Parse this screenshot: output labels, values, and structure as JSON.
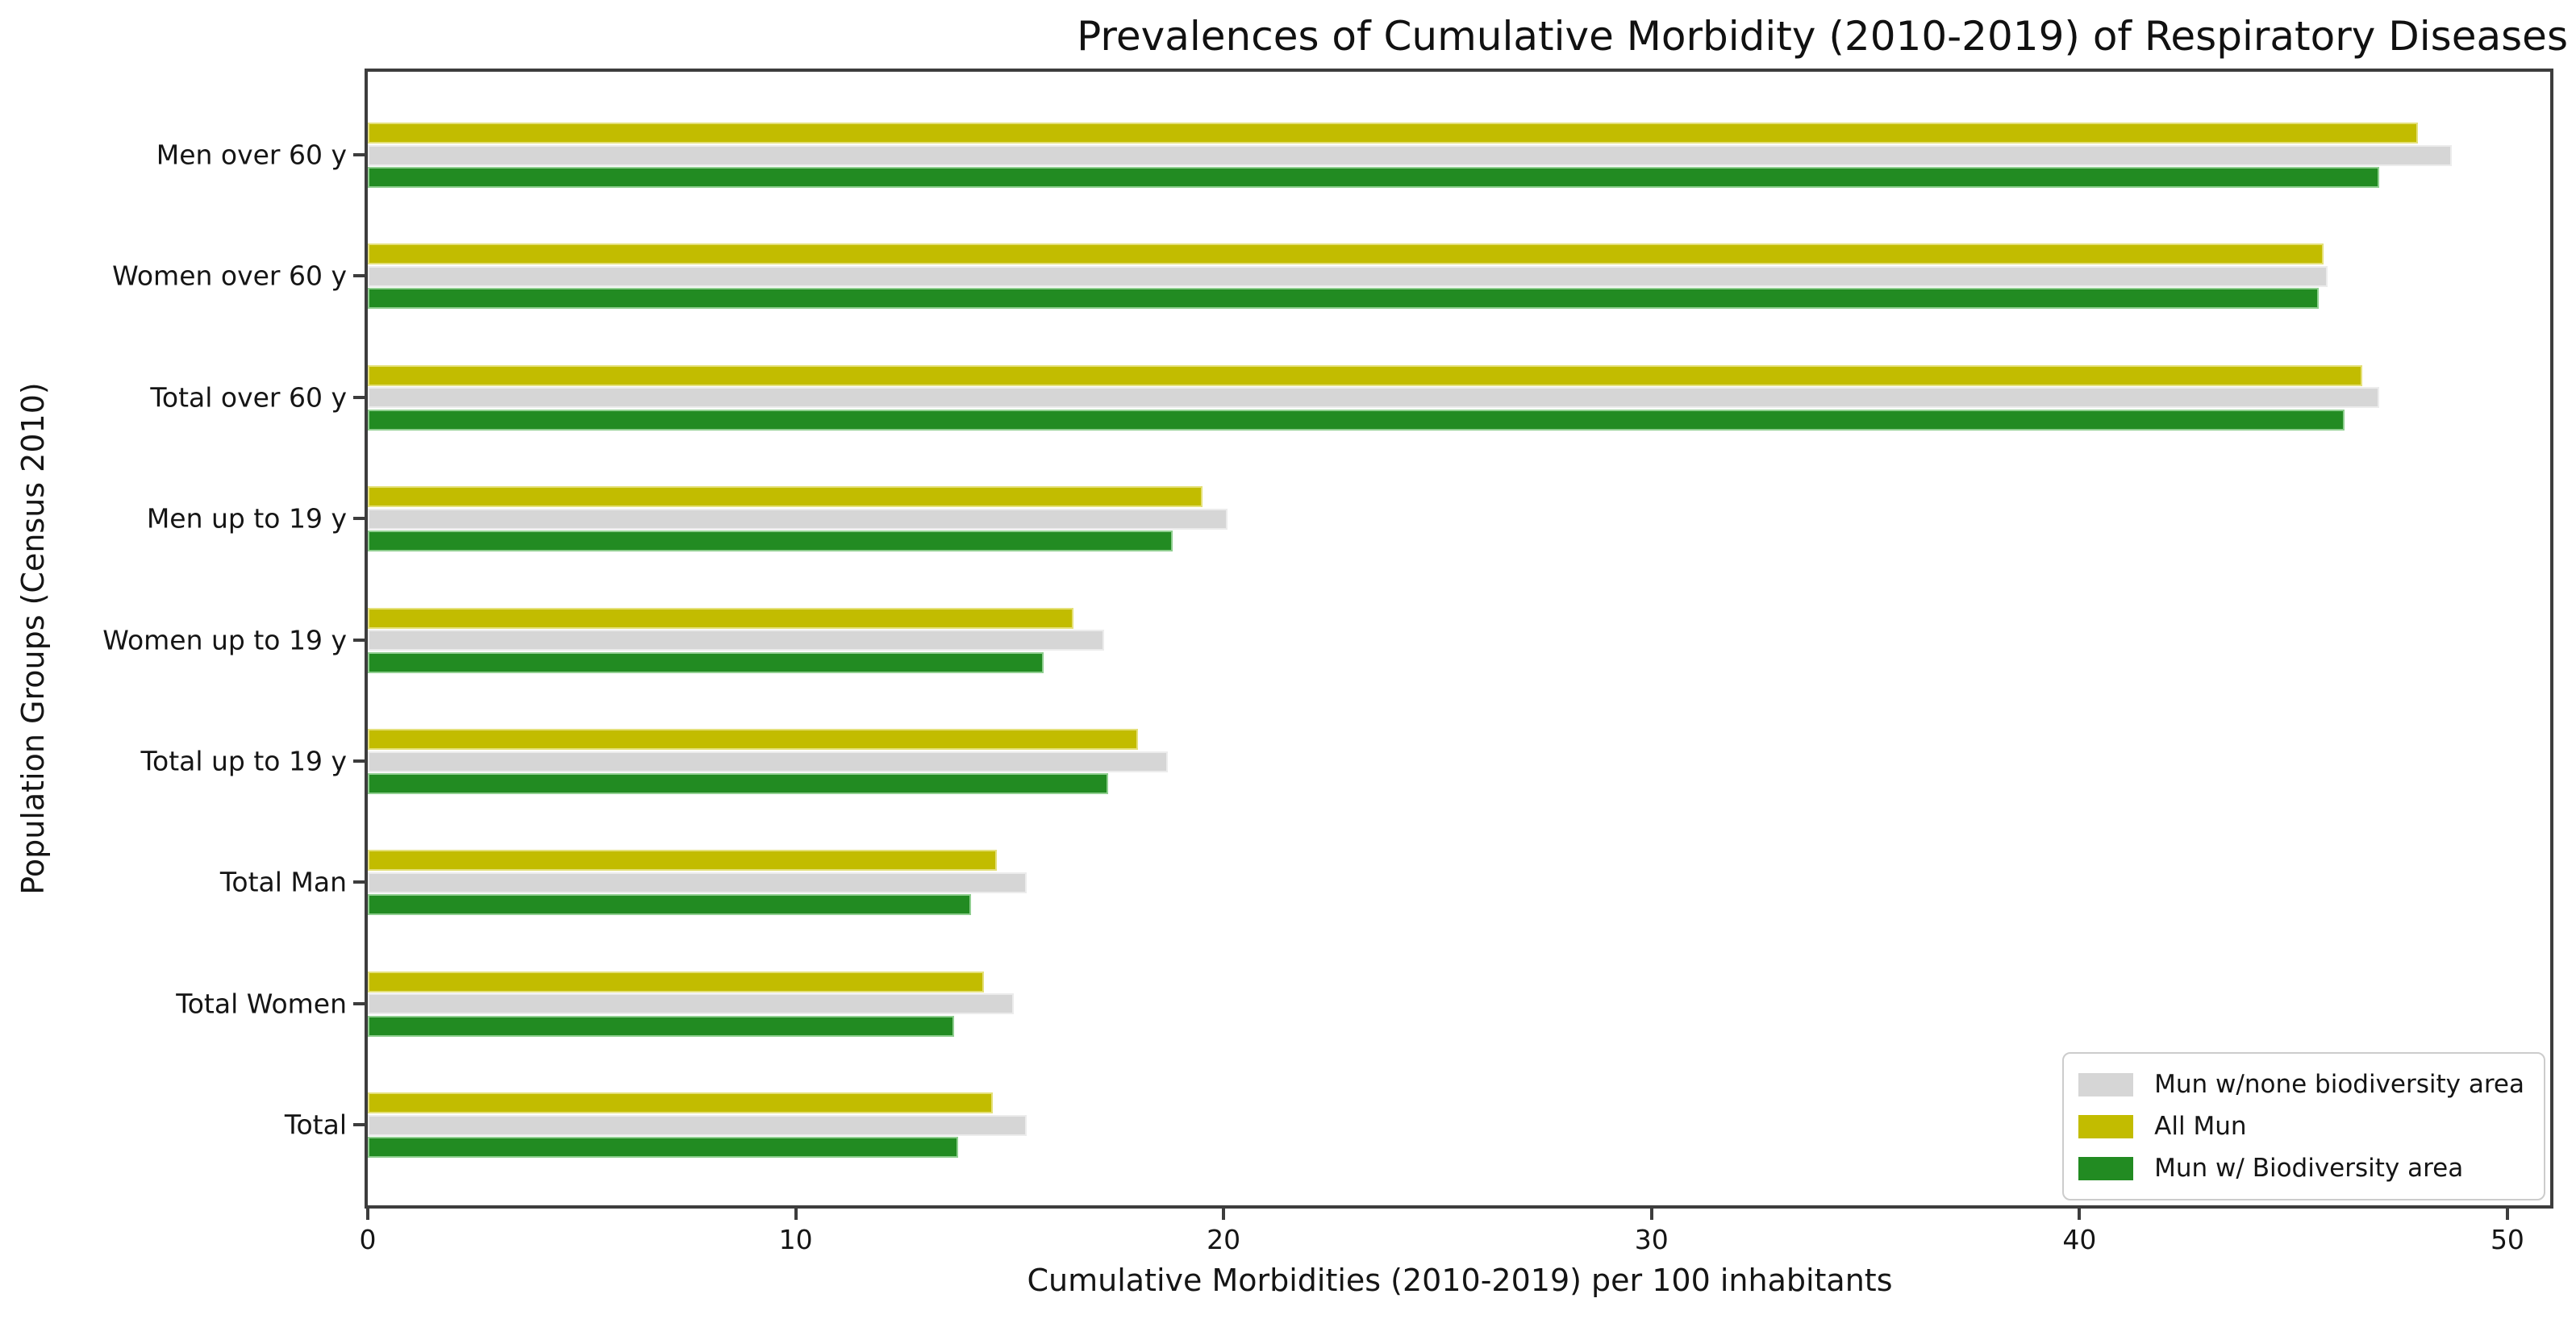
{
  "chart_data": {
    "type": "bar",
    "orientation": "horizontal",
    "title": "Prevalences of Cumulative Morbidity (2010-2019) of Respiratory Diseases",
    "xlabel": "Cumulative Morbidities (2010-2019) per 100 inhabitants",
    "ylabel": "Population Groups (Census 2010)",
    "categories": [
      "Men over 60 y",
      "Women over 60 y",
      "Total over 60 y",
      "Men up to 19 y",
      "Women up to 19 y",
      "Total up to 19 y",
      "Total Man",
      "Total Women",
      "Total"
    ],
    "series": [
      {
        "name": "All Mun",
        "color": "#c2bc00",
        "edge_color": "#e4e07a",
        "values": [
          47.9,
          45.7,
          46.6,
          19.5,
          16.5,
          18.0,
          14.7,
          14.4,
          14.6
        ]
      },
      {
        "name": "Mun w/none biodiversity area",
        "color": "#d6d6d6",
        "edge_color": "#ececec",
        "values": [
          48.7,
          45.8,
          47.0,
          20.1,
          17.2,
          18.7,
          15.4,
          15.1,
          15.4
        ]
      },
      {
        "name": "Mun w/ Biodiversity area",
        "color": "#228b22",
        "edge_color": "#8fce8f",
        "values": [
          47.0,
          45.6,
          46.2,
          18.8,
          15.8,
          17.3,
          14.1,
          13.7,
          13.8
        ]
      }
    ],
    "legend": {
      "position": "lower-right",
      "entries": [
        {
          "label": "Mun w/none biodiversity area",
          "color": "#d6d6d6"
        },
        {
          "label": "All Mun",
          "color": "#c2bc00"
        },
        {
          "label": "Mun w/ Biodiversity area",
          "color": "#228b22"
        }
      ]
    },
    "xticks": [
      0,
      10,
      20,
      30,
      40,
      50
    ],
    "xlim": [
      0,
      51
    ],
    "grid": false,
    "axis_color": "#3d3d3d"
  }
}
